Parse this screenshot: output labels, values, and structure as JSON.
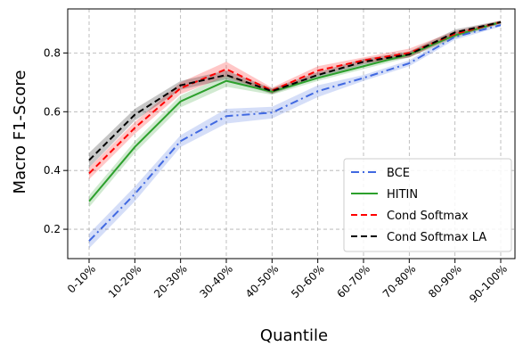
{
  "chart_data": {
    "type": "line",
    "title": "",
    "xlabel": "Quantile",
    "ylabel": "Macro F1-Score",
    "categories": [
      "0-10%",
      "10-20%",
      "20-30%",
      "30-40%",
      "40-50%",
      "50-60%",
      "60-70%",
      "70-80%",
      "80-90%",
      "90-100%"
    ],
    "ylim": [
      0.1,
      0.95
    ],
    "yticks": [
      0.2,
      0.4,
      0.6,
      0.8
    ],
    "ytick_labels": [
      "0.2",
      "0.4",
      "0.6",
      "0.8"
    ],
    "grid": true,
    "legend_position": "lower-right",
    "series": [
      {
        "name": "BCE",
        "color": "#4169e1",
        "dash": "dashdot",
        "values": [
          0.16,
          0.32,
          0.5,
          0.585,
          0.597,
          0.67,
          0.715,
          0.765,
          0.855,
          0.895
        ],
        "band": [
          0.025,
          0.025,
          0.02,
          0.025,
          0.02,
          0.02,
          0.01,
          0.01,
          0.01,
          0.005
        ]
      },
      {
        "name": "HITIN",
        "color": "#2ca02c",
        "dash": "solid",
        "values": [
          0.295,
          0.48,
          0.635,
          0.705,
          0.668,
          0.715,
          0.755,
          0.795,
          0.86,
          0.905
        ],
        "band": [
          0.02,
          0.02,
          0.02,
          0.02,
          0.01,
          0.01,
          0.01,
          0.01,
          0.01,
          0.005
        ]
      },
      {
        "name": "Cond Softmax",
        "color": "#ff0000",
        "dash": "dashed",
        "values": [
          0.39,
          0.545,
          0.68,
          0.745,
          0.672,
          0.74,
          0.775,
          0.8,
          0.865,
          0.905
        ],
        "band": [
          0.02,
          0.02,
          0.02,
          0.025,
          0.01,
          0.015,
          0.01,
          0.015,
          0.01,
          0.005
        ]
      },
      {
        "name": "Cond Softmax LA",
        "color": "#000000",
        "dash": "dashed",
        "values": [
          0.435,
          0.59,
          0.69,
          0.725,
          0.67,
          0.725,
          0.77,
          0.795,
          0.87,
          0.905
        ],
        "band": [
          0.025,
          0.02,
          0.015,
          0.015,
          0.01,
          0.01,
          0.01,
          0.01,
          0.01,
          0.005
        ]
      }
    ]
  }
}
